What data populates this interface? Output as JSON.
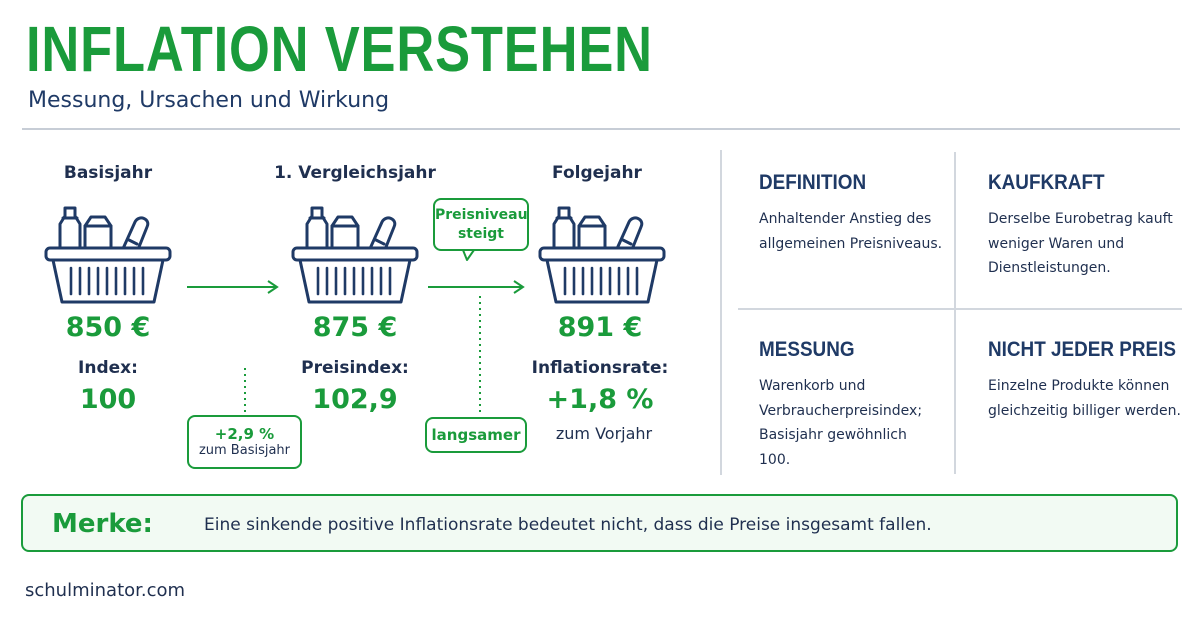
{
  "header": {
    "title": "INFLATION VERSTEHEN",
    "subtitle": "Messung, Ursachen und Wirkung"
  },
  "timeline": {
    "steps": [
      {
        "label": "Basisjahr",
        "price": "850 €",
        "index_label": "Index:",
        "index_value": "100"
      },
      {
        "label": "1. Vergleichsjahr",
        "price": "875 €",
        "index_label": "Preisindex:",
        "index_value": "102,9"
      },
      {
        "label": "Folgejahr",
        "price": "891 €",
        "index_label": "Inflationsrate:",
        "index_value": "+1,8 %",
        "index_note": "zum Vorjahr"
      }
    ],
    "callouts": {
      "change_value": "+2,9 %",
      "change_note": "zum Basisjahr",
      "speech_line1": "Preisniveau",
      "speech_line2": "steigt",
      "slower": "langsamer"
    }
  },
  "cards": [
    {
      "title": "DEFINITION",
      "text": "Anhaltender Anstieg des allgemeinen Preisniveaus."
    },
    {
      "title": "KAUFKRAFT",
      "text": "Derselbe Eurobetrag kauft weniger Waren und Dienstleistungen."
    },
    {
      "title": "MESSUNG",
      "text": "Warenkorb und Verbraucherpreisindex; Basisjahr gewöhnlich 100."
    },
    {
      "title": "NICHT JEDER PREIS",
      "text": "Einzelne Produkte können gleichzeitig billiger werden."
    }
  ],
  "merke": {
    "label": "Merke:",
    "text": "Eine sinkende positive Inflationsrate bedeutet nicht, dass die Preise insgesamt fallen."
  },
  "footer": {
    "source": "schulminator.com"
  },
  "colors": {
    "accent": "#1a9b3b",
    "navy": "#1f3a66",
    "text": "#1f2f4f",
    "rule": "#c7cdd6"
  }
}
